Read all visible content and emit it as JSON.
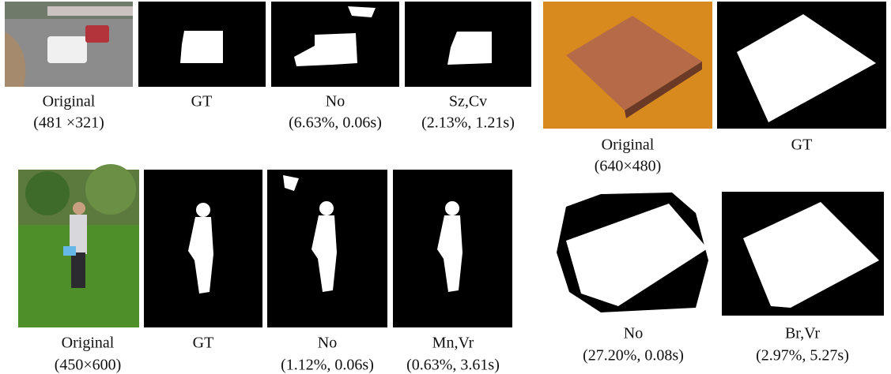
{
  "figures": [
    {
      "panels": [
        {
          "label": "Original",
          "detail": "(481 ×321)"
        },
        {
          "label": "GT"
        },
        {
          "label": "No",
          "detail": "(6.63%, 0.06s)"
        },
        {
          "label": "Sz,Cv",
          "detail": "(2.13%, 1.21s)"
        }
      ]
    },
    {
      "panels": [
        {
          "label": "Original",
          "detail": "(450×600)"
        },
        {
          "label": "GT"
        },
        {
          "label": "No",
          "detail": "(1.12%, 0.06s)"
        },
        {
          "label": "Mn,Vr",
          "detail": "(0.63%, 3.61s)"
        }
      ]
    },
    {
      "panels": [
        {
          "label": "Original",
          "detail": "(640×480)"
        },
        {
          "label": "GT"
        },
        {
          "label": "No",
          "detail": "(27.20%, 0.08s)"
        },
        {
          "label": "Br,Vr",
          "detail": "(2.97%, 5.27s)"
        }
      ]
    }
  ]
}
